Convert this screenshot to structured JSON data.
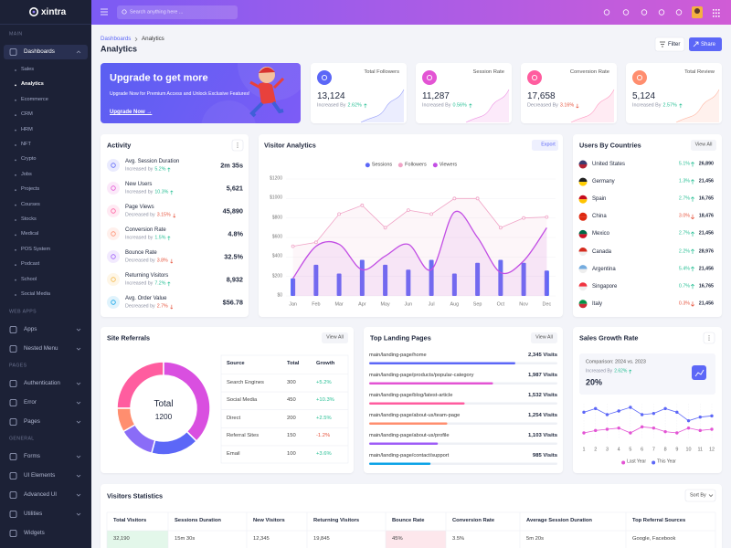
{
  "sidebar": {
    "logo": "xintra",
    "sections": [
      {
        "title": "MAIN",
        "items": [
          {
            "label": "Dashboards",
            "submenu": true,
            "active": true,
            "children": [
              {
                "label": "Sales"
              },
              {
                "label": "Analytics",
                "active": true
              },
              {
                "label": "Ecommerce"
              },
              {
                "label": "CRM"
              },
              {
                "label": "HRM"
              },
              {
                "label": "NFT"
              },
              {
                "label": "Crypto"
              },
              {
                "label": "Jobs"
              },
              {
                "label": "Projects"
              },
              {
                "label": "Courses"
              },
              {
                "label": "Stocks"
              },
              {
                "label": "Medical"
              },
              {
                "label": "POS System"
              },
              {
                "label": "Podcast"
              },
              {
                "label": "School"
              },
              {
                "label": "Social Media"
              }
            ]
          }
        ]
      },
      {
        "title": "WEB APPS",
        "items": [
          {
            "label": "Apps",
            "submenu": true
          },
          {
            "label": "Nested Menu",
            "submenu": true
          }
        ]
      },
      {
        "title": "PAGES",
        "items": [
          {
            "label": "Authentication",
            "submenu": true
          },
          {
            "label": "Error",
            "submenu": true
          },
          {
            "label": "Pages",
            "submenu": true
          }
        ]
      },
      {
        "title": "GENERAL",
        "items": [
          {
            "label": "Forms",
            "submenu": true
          },
          {
            "label": "UI Elements",
            "submenu": true
          },
          {
            "label": "Advanced UI",
            "submenu": true
          },
          {
            "label": "Utilities",
            "submenu": true
          },
          {
            "label": "Widgets"
          }
        ]
      }
    ]
  },
  "header": {
    "search_placeholder": "Search anything here ..."
  },
  "page": {
    "breadcrumb": [
      "Dashboards",
      "Analytics"
    ],
    "title": "Analytics",
    "buttons": [
      "Filter",
      "Share"
    ]
  },
  "upgrade": {
    "title": "Upgrade to get more",
    "text": "Upgrade Now for Premium Access and Unlock Exclusive Features!",
    "link": "Upgrade Now →"
  },
  "stats": [
    {
      "label": "Total Followers",
      "value": "13,124",
      "change_text": "Increased By",
      "change": "2.62%",
      "trend": "up",
      "color": "#5c67f7"
    },
    {
      "label": "Session Rate",
      "value": "11,287",
      "change_text": "Increased By",
      "change": "0.56%",
      "trend": "up",
      "color": "#e354d4"
    },
    {
      "label": "Conversion Rate",
      "value": "17,658",
      "change_text": "Decreased By",
      "change": "3.16%",
      "trend": "down",
      "color": "#ff5d9f"
    },
    {
      "label": "Total Review",
      "value": "5,124",
      "change_text": "Increased By",
      "change": "2.57%",
      "trend": "up",
      "color": "#ff8e6f"
    }
  ],
  "activity": {
    "title": "Activity",
    "items": [
      {
        "label": "Avg. Session Duration",
        "change_text": "Increased by",
        "change": "5.2%",
        "trend": "up",
        "value": "2m 35s"
      },
      {
        "label": "New Users",
        "change_text": "Increased by",
        "change": "10.3%",
        "trend": "up",
        "value": "5,621"
      },
      {
        "label": "Page Views",
        "change_text": "Decreased by",
        "change": "3.15%",
        "trend": "down",
        "value": "45,890"
      },
      {
        "label": "Conversion Rate",
        "change_text": "Increased by",
        "change": "1.5%",
        "trend": "up",
        "value": "4.8%"
      },
      {
        "label": "Bounce Rate",
        "change_text": "Decreased by",
        "change": "3.8%",
        "trend": "down",
        "value": "32.5%"
      },
      {
        "label": "Returning Visitors",
        "change_text": "Increased by",
        "change": "7.2%",
        "trend": "up",
        "value": "8,932"
      },
      {
        "label": "Avg. Order Value",
        "change_text": "Decreased by",
        "change": "2.7%",
        "trend": "down",
        "value": "$56.78"
      }
    ]
  },
  "visitor_analytics": {
    "type": "mixed",
    "title": "Visitor Analytics",
    "button": "Export",
    "categories": [
      "Jan",
      "Feb",
      "Mar",
      "Apr",
      "May",
      "Jun",
      "Jul",
      "Aug",
      "Sep",
      "Oct",
      "Nov",
      "Dec"
    ],
    "series": [
      {
        "name": "Sessions",
        "type": "bar",
        "color": "#5c67f7",
        "values": [
          180,
          320,
          230,
          370,
          320,
          270,
          370,
          230,
          340,
          370,
          340,
          260
        ]
      },
      {
        "name": "Followers",
        "type": "line",
        "color": "#f0a3c6",
        "values": [
          510,
          550,
          840,
          930,
          700,
          880,
          840,
          1000,
          1000,
          700,
          800,
          810
        ]
      },
      {
        "name": "Viewers",
        "type": "curve",
        "color": "#c24ee4",
        "values": [
          180,
          510,
          530,
          270,
          410,
          530,
          270,
          860,
          600,
          240,
          360,
          700
        ]
      }
    ],
    "ylim": [
      0,
      1200
    ],
    "yticks": [
      {
        "value": 0,
        "label": "$0"
      },
      {
        "value": 200,
        "label": "$200"
      },
      {
        "value": 400,
        "label": "$400"
      },
      {
        "value": 600,
        "label": "$600"
      },
      {
        "value": 800,
        "label": "$800"
      },
      {
        "value": 1000,
        "label": "$1000"
      },
      {
        "value": 1200,
        "label": "$1200"
      }
    ],
    "grid": true
  },
  "countries": {
    "title": "Users By Countries",
    "button": "View All",
    "rows": [
      {
        "name": "United States",
        "change": "5.1%",
        "trend": "up",
        "value": "26,890"
      },
      {
        "name": "Germany",
        "change": "1.3%",
        "trend": "up",
        "value": "21,456"
      },
      {
        "name": "Spain",
        "change": "2.7%",
        "trend": "up",
        "value": "16,765"
      },
      {
        "name": "China",
        "change": "3.0%",
        "trend": "down",
        "value": "18,476"
      },
      {
        "name": "Mexico",
        "change": "2.7%",
        "trend": "up",
        "value": "21,456"
      },
      {
        "name": "Canada",
        "change": "2.2%",
        "trend": "up",
        "value": "28,976"
      },
      {
        "name": "Argentina",
        "change": "5.4%",
        "trend": "up",
        "value": "21,456"
      },
      {
        "name": "Singapore",
        "change": "0.7%",
        "trend": "up",
        "value": "16,765"
      },
      {
        "name": "Italy",
        "change": "0.3%",
        "trend": "down",
        "value": "21,456"
      }
    ]
  },
  "referrals": {
    "title": "Site Referrals",
    "button": "View All",
    "type": "donut",
    "center_label": "Total",
    "center_value": "1200",
    "colors": [
      "#ff5d9f",
      "#d94fe0",
      "#5c67f7",
      "#8a6cf7",
      "#ff8e6f"
    ],
    "table": {
      "columns": [
        "Source",
        "Total",
        "Growth"
      ],
      "rows": [
        [
          "Search Engines",
          300,
          "+5.2%"
        ],
        [
          "Social Media",
          450,
          "+10.3%"
        ],
        [
          "Direct",
          200,
          "+2.5%"
        ],
        [
          "Referral Sites",
          150,
          "-1.2%"
        ],
        [
          "Email",
          100,
          "+3.6%"
        ]
      ]
    }
  },
  "landing": {
    "title": "Top Landing Pages",
    "button": "View All",
    "rows": [
      {
        "path": "main/landing-page/home",
        "visits": {
          "value": 2345,
          "label": "2,345 Visits"
        },
        "color": "#5c67f7"
      },
      {
        "path": "main/landing-page/products/popular-category",
        "visits": {
          "value": 1987,
          "label": "1,987 Visits"
        },
        "color": "#e354d4"
      },
      {
        "path": "main/landing-page/blog/latest-article",
        "visits": {
          "value": 1532,
          "label": "1,532 Visits"
        },
        "color": "#ff5d9f"
      },
      {
        "path": "main/landing-page/about-us/team-page",
        "visits": {
          "value": 1254,
          "label": "1,254 Visits"
        },
        "color": "#ff8e6f"
      },
      {
        "path": "main/landing-page/about-us/profile",
        "visits": {
          "value": 1103,
          "label": "1,103 Visits"
        },
        "color": "#9e5cf7"
      },
      {
        "path": "main/landing-page/contact/support",
        "visits": {
          "value": 985,
          "label": "985 Visits"
        },
        "color": "#0ca3e7"
      }
    ]
  },
  "growth": {
    "title": "Sales Growth Rate",
    "comparison": "Comparison: 2024 vs. 2023",
    "change_text": "Increased By",
    "change": "2.62%",
    "trend": "up",
    "value": "20%",
    "chart": {
      "type": "line",
      "x": [
        1,
        2,
        3,
        4,
        5,
        6,
        7,
        8,
        9,
        10,
        11,
        12
      ],
      "series": [
        {
          "name": "Last Year",
          "color": "#e354d4",
          "values": [
            28,
            32,
            34,
            36,
            28,
            38,
            36,
            30,
            28,
            36,
            32,
            34
          ]
        },
        {
          "name": "This Year",
          "color": "#5c67f7",
          "values": [
            62,
            68,
            58,
            64,
            70,
            58,
            60,
            68,
            62,
            48,
            54,
            56
          ]
        }
      ]
    }
  },
  "visitors_stats": {
    "title": "Visitors Statistics",
    "button": "Sort By",
    "columns": [
      "Total Visitors",
      "Sessions Duration",
      "New Visitors",
      "Returning Visitors",
      "Bounce Rate",
      "Conversion Rate",
      "Average Session Duration",
      "Top Referral Sources"
    ],
    "rows": [
      [
        "32,190",
        "15m 30s",
        "12,345",
        "19,845",
        "45%",
        "3.5%",
        "5m 20s",
        "Google, Facebook"
      ]
    ]
  }
}
